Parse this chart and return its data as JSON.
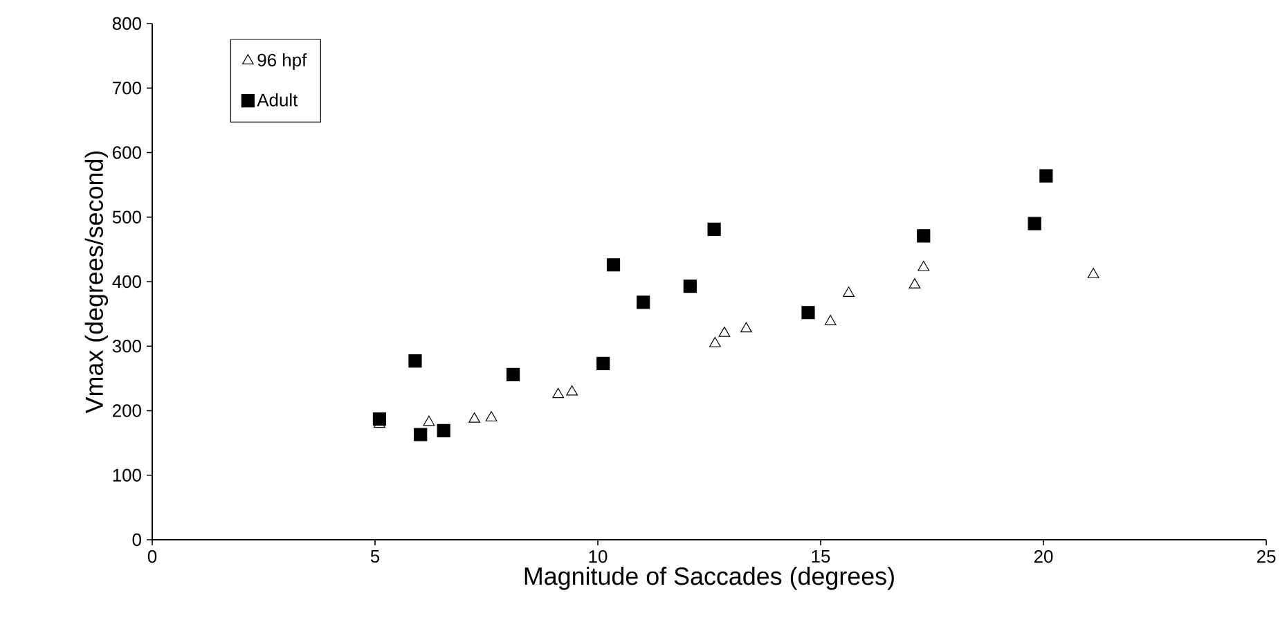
{
  "chart_data": {
    "type": "scatter",
    "xlabel": "Magnitude of Saccades (degrees)",
    "ylabel": "Vmax (degrees/second)",
    "xlim": [
      0,
      25
    ],
    "xticks": [
      0,
      5,
      10,
      15,
      20,
      25
    ],
    "ylim": [
      0,
      800
    ],
    "yticks": [
      0,
      100,
      200,
      300,
      400,
      500,
      600,
      700,
      800
    ],
    "grid": false,
    "legend": "top left",
    "series": [
      {
        "name": "96 hpf",
        "color": "#000000",
        "marker": "triangle",
        "x": [
          5.1,
          6.21,
          7.23,
          7.61,
          9.11,
          9.42,
          12.63,
          12.84,
          13.33,
          15.22,
          15.63,
          17.11,
          17.31,
          21.12
        ],
        "values": [
          179,
          182,
          187,
          189,
          225,
          229,
          304,
          320,
          327,
          338,
          382,
          395,
          422,
          411
        ]
      },
      {
        "name": "Adult",
        "color": "#000000",
        "marker": "square",
        "x": [
          5.1,
          5.9,
          6.02,
          6.54,
          8.1,
          10.12,
          10.35,
          11.02,
          12.07,
          12.61,
          14.72,
          17.31,
          19.8,
          20.06
        ],
        "values": [
          187,
          277,
          163,
          169,
          256,
          273,
          426,
          368,
          393,
          481,
          352,
          471,
          490,
          564
        ]
      }
    ]
  }
}
